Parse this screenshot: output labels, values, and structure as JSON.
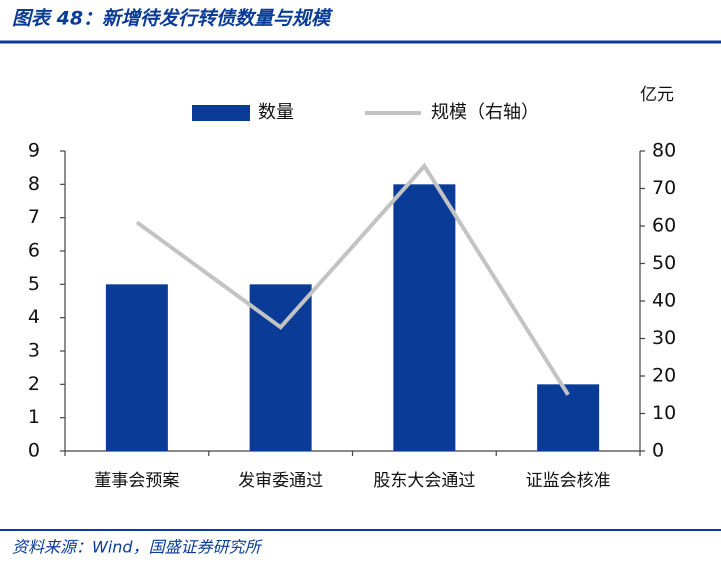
{
  "chart_data": {
    "type": "bar",
    "title": "图表 48：新增待发行转债数量与规模",
    "source": "资料来源：Wind，国盛证券研究所",
    "y2label": "亿元",
    "categories": [
      "董事会预案",
      "发审委通过",
      "股东大会通过",
      "证监会核准"
    ],
    "series": [
      {
        "name": "数量",
        "type": "bar",
        "color": "#0a3c97",
        "values": [
          5,
          5,
          8,
          2
        ]
      },
      {
        "name": "规模（右轴）",
        "type": "line",
        "axis": "y2",
        "color": "#c3c3c3",
        "values": [
          61,
          33,
          76,
          15
        ]
      }
    ],
    "ylim": [
      0,
      9
    ],
    "yticks": [
      0,
      1,
      2,
      3,
      4,
      5,
      6,
      7,
      8,
      9
    ],
    "y2lim": [
      0,
      80
    ],
    "y2ticks": [
      0,
      10,
      20,
      30,
      40,
      50,
      60,
      70,
      80
    ],
    "grid": false,
    "legend": "top"
  }
}
